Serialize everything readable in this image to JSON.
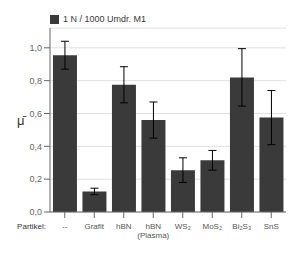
{
  "chart_data": {
    "type": "bar",
    "ylabel": "μ̄",
    "categories": [
      "--",
      "Grafit",
      "hBN",
      "hBN\n(Plasma)",
      "WS₂",
      "MoS₂",
      "Bi₂S₃",
      "SnS"
    ],
    "series": [
      {
        "name": "1 N / 1000 Umdr. M1",
        "color": "#3a3a3a",
        "values": [
          0.955,
          0.125,
          0.775,
          0.56,
          0.255,
          0.315,
          0.82,
          0.575
        ],
        "errors": [
          0.085,
          0.02,
          0.11,
          0.11,
          0.075,
          0.06,
          0.175,
          0.165
        ]
      }
    ],
    "ylim": [
      0.0,
      1.12
    ],
    "yticks": [
      {
        "value": 0.0,
        "label": "0,0"
      },
      {
        "value": 0.2,
        "label": "0,2"
      },
      {
        "value": 0.4,
        "label": "0,4"
      },
      {
        "value": 0.6,
        "label": "0,6"
      },
      {
        "value": 0.8,
        "label": "0,8"
      },
      {
        "value": 1.0,
        "label": "1,0"
      }
    ],
    "grid": true,
    "legend": "upper left",
    "annotations": [
      "Partikel:"
    ]
  }
}
